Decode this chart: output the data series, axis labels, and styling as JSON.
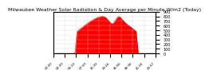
{
  "title": "Milwaukee Weather Solar Radiation & Day Average per Minute W/m2 (Today)",
  "title_fontsize": 4.5,
  "background_color": "#ffffff",
  "plot_bg_color": "#ffffff",
  "grid_color": "#cccccc",
  "fill_color": "#ff0000",
  "line_color": "#cc0000",
  "ylim": [
    0,
    900
  ],
  "yticks": [
    0,
    100,
    200,
    300,
    400,
    500,
    600,
    700,
    800,
    900
  ],
  "ylabel_fontsize": 3.5,
  "xlabel_fontsize": 3.0,
  "num_points": 120
}
